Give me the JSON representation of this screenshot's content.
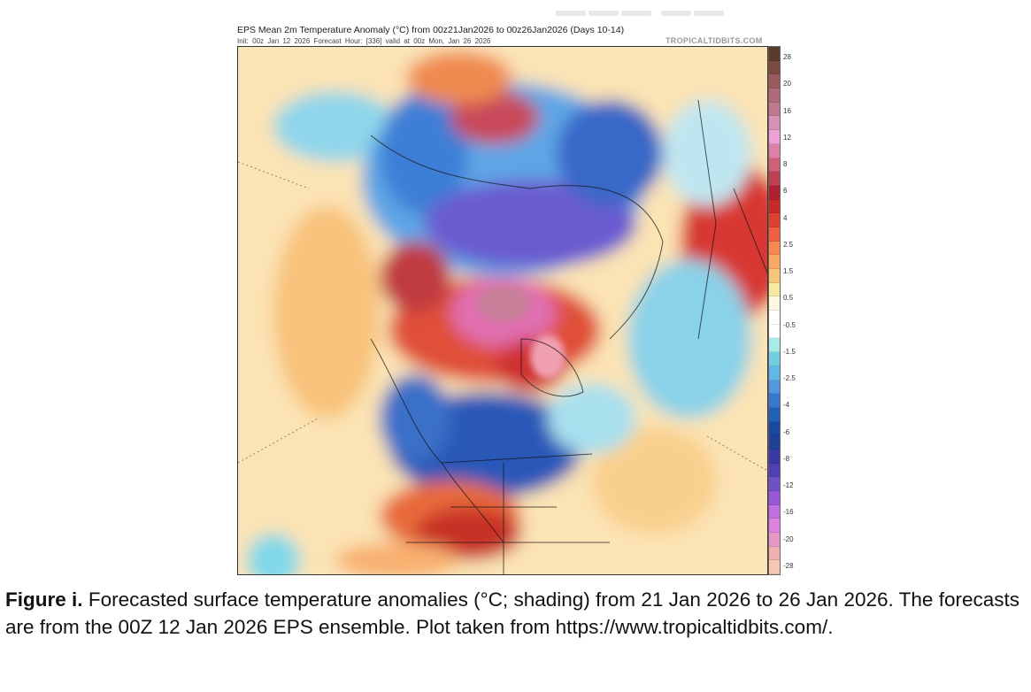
{
  "figure": {
    "title": "EPS Mean 2m Temperature Anomaly (°C) from 00z21Jan2026 to 00z26Jan2026 (Days 10-14)",
    "subtitle": "Init: 00z Jan 12 2026   Forecast Hour: [336]   valid at 00z Mon, Jan 26 2026",
    "brand": "TROPICALTIDBITS.COM",
    "colorbar": {
      "labels": [
        "28",
        "20",
        "16",
        "12",
        "8",
        "6",
        "4",
        "2.5",
        "1.5",
        "0.5",
        "-0.5",
        "-1.5",
        "-2.5",
        "-4",
        "-6",
        "-8",
        "-12",
        "-16",
        "-20",
        "-28"
      ],
      "colors": [
        "#5a3a2a",
        "#7a4a3e",
        "#9a5a5e",
        "#b06a7a",
        "#c07890",
        "#d890b8",
        "#f0a0d8",
        "#e080a8",
        "#d06078",
        "#c04050",
        "#b02030",
        "#c82828",
        "#e04030",
        "#f06040",
        "#f88850",
        "#f8a860",
        "#f8c878",
        "#f8e8a0",
        "#fff8e0",
        "#ffffff",
        "#ffffff",
        "#a8ece8",
        "#70d0e0",
        "#60b8e8",
        "#5098e0",
        "#3878d0",
        "#2060b8",
        "#1848a0",
        "#204098",
        "#3838a8",
        "#5040b8",
        "#7050c8",
        "#9858d8",
        "#c070e0",
        "#e080e0",
        "#e898c8",
        "#f0b0b0",
        "#f8c8b0"
      ]
    }
  },
  "caption": {
    "label": "Figure i.",
    "text": " Forecasted surface temperature anomalies (°C; shading) from 21 Jan 2026 to 26 Jan 2026. The forecasts are from the 00Z 12 Jan 2026 EPS ensemble. Plot taken from https://www.tropicaltidbits.com/."
  }
}
